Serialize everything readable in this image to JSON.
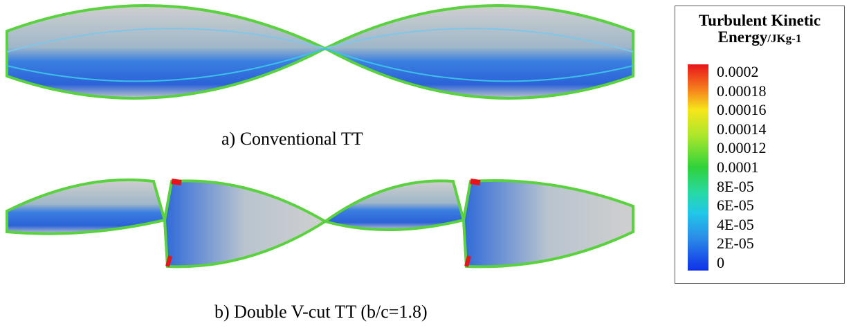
{
  "captions": {
    "a": "a)  Conventional TT",
    "b": "b)  Double V-cut TT (b/c=1.8)"
  },
  "legend": {
    "title_line1": "Turbulent Kinetic",
    "title_line2": "Energy",
    "unit": "/JKg-1",
    "ticks": [
      "0.0002",
      "0.00018",
      "0.00016",
      "0.00014",
      "0.00012",
      "0.0001",
      "8E-05",
      "6E-05",
      "4E-05",
      "2E-05",
      "0"
    ]
  }
}
